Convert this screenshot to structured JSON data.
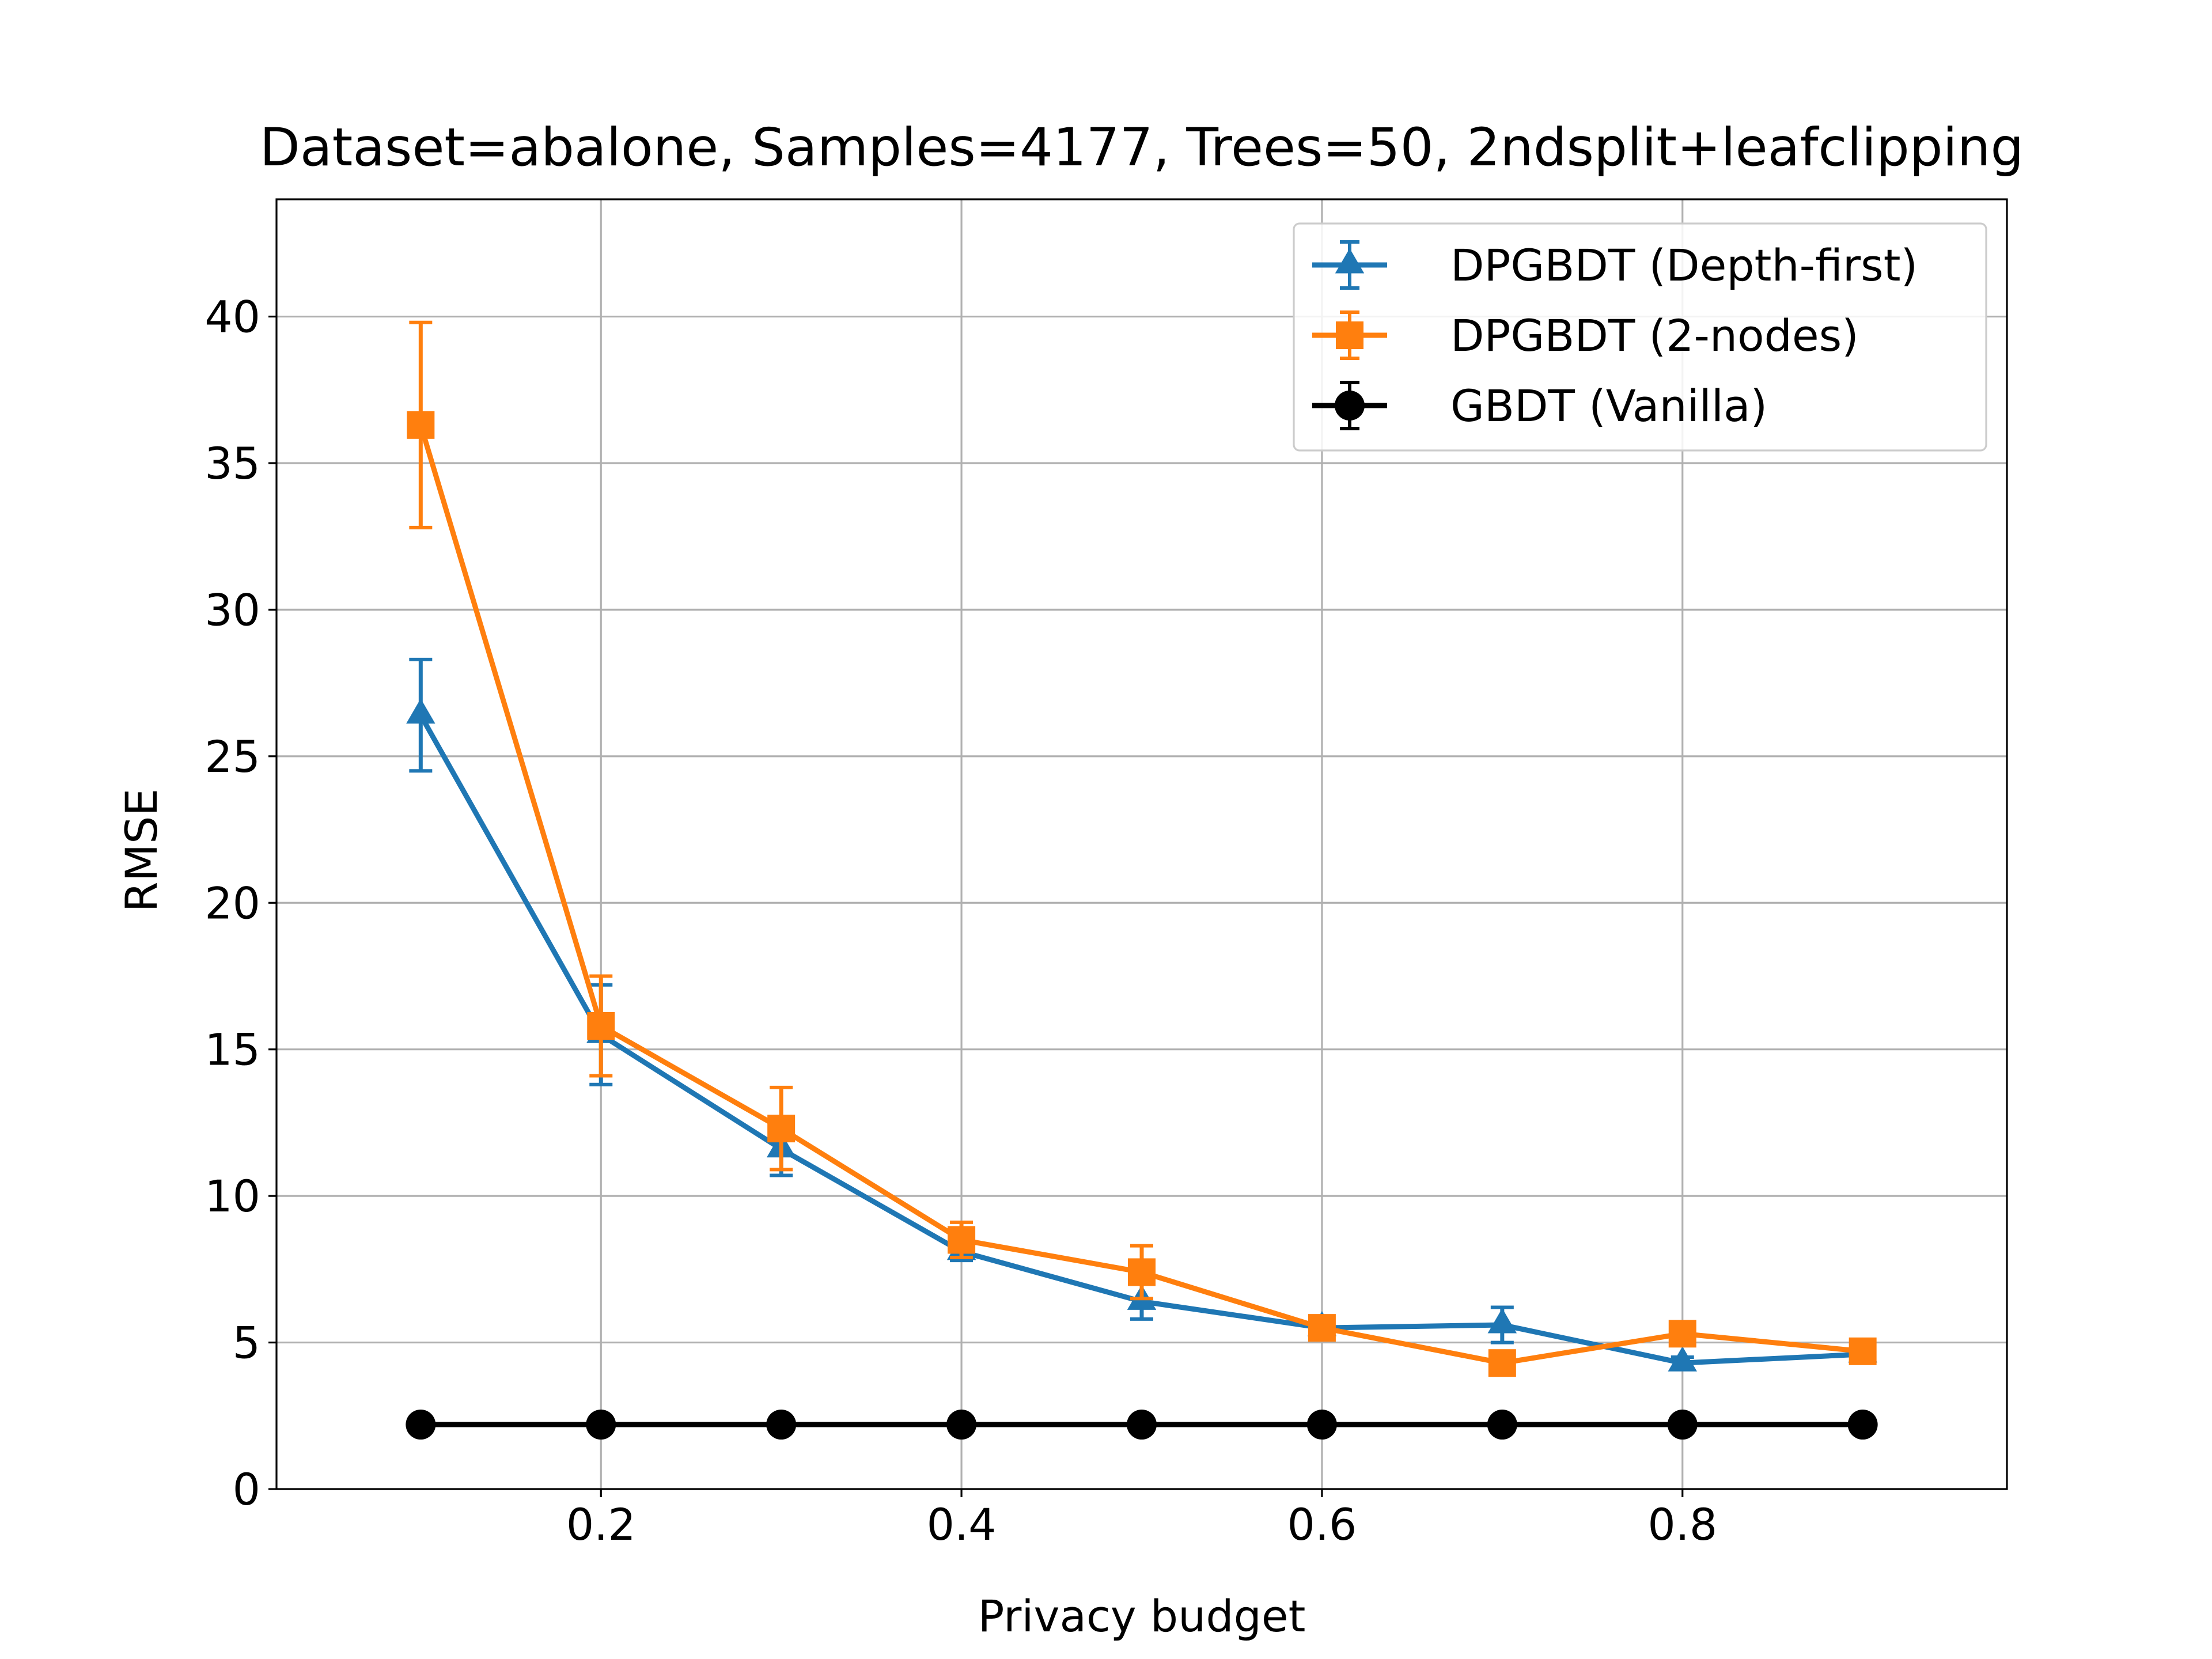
{
  "chart_data": {
    "type": "line",
    "title": "Dataset=abalone, Samples=4177, Trees=50, 2ndsplit+leafclipping",
    "xlabel": "Privacy budget",
    "ylabel": "RMSE",
    "xlim": [
      0.02,
      0.98
    ],
    "ylim": [
      0,
      44
    ],
    "xticks": [
      0.2,
      0.4,
      0.6,
      0.8
    ],
    "xtick_labels": [
      "0.2",
      "0.4",
      "0.6",
      "0.8"
    ],
    "yticks": [
      0,
      5,
      10,
      15,
      20,
      25,
      30,
      35,
      40
    ],
    "ytick_labels": [
      "0",
      "5",
      "10",
      "15",
      "20",
      "25",
      "30",
      "35",
      "40"
    ],
    "grid": true,
    "legend_position": "top-right",
    "x": [
      0.1,
      0.2,
      0.3,
      0.4,
      0.5,
      0.6,
      0.7,
      0.8,
      0.9
    ],
    "series": [
      {
        "name": "DPGBDT (Depth-first)",
        "color": "#1f77b4",
        "marker": "triangle",
        "values": [
          26.4,
          15.5,
          11.6,
          8.1,
          6.4,
          5.5,
          5.6,
          4.3,
          4.6
        ],
        "errors": [
          1.9,
          1.7,
          0.9,
          0.3,
          0.6,
          0.4,
          0.6,
          0.2,
          0.2
        ]
      },
      {
        "name": "DPGBDT (2-nodes)",
        "color": "#ff7f0e",
        "marker": "square",
        "values": [
          36.3,
          15.8,
          12.3,
          8.5,
          7.4,
          5.5,
          4.3,
          5.3,
          4.7
        ],
        "errors": [
          3.5,
          1.7,
          1.4,
          0.6,
          0.9,
          0.3,
          0.2,
          0.3,
          0.2
        ]
      },
      {
        "name": "GBDT (Vanilla)",
        "color": "#000000",
        "marker": "circle",
        "values": [
          2.2,
          2.2,
          2.2,
          2.2,
          2.2,
          2.2,
          2.2,
          2.2,
          2.2
        ],
        "errors": [
          0,
          0,
          0,
          0,
          0,
          0,
          0,
          0,
          0
        ]
      }
    ]
  }
}
